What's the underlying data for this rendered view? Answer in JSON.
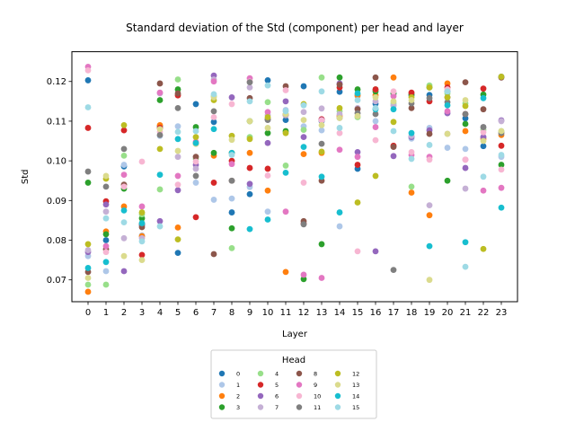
{
  "chart_data": {
    "type": "scatter",
    "title": "Standard deviation of the Std (component) per head and layer",
    "xlabel": "Layer",
    "ylabel": "Std",
    "x": [
      0,
      1,
      2,
      3,
      4,
      5,
      6,
      7,
      8,
      9,
      10,
      11,
      12,
      13,
      14,
      15,
      16,
      17,
      18,
      19,
      20,
      21,
      22,
      23
    ],
    "x_ticks": [
      "0",
      "1",
      "2",
      "3",
      "4",
      "5",
      "6",
      "7",
      "8",
      "9",
      "10",
      "11",
      "12",
      "13",
      "14",
      "15",
      "16",
      "17",
      "18",
      "19",
      "20",
      "21",
      "22",
      "23"
    ],
    "y_ticks": [
      "0.07",
      "0.08",
      "0.09",
      "0.10",
      "0.11",
      "0.12"
    ],
    "xlim": [
      -0.9,
      23.9
    ],
    "ylim": [
      0.0645,
      0.1275
    ],
    "grid": false,
    "legend": {
      "title": "Head",
      "placement": "bottom-center",
      "columns": 4
    },
    "series": [
      {
        "name": "0",
        "color": "#1f77b4",
        "values": [
          0.1203,
          0.08,
          0.0986,
          0.0838,
          0.1087,
          0.0768,
          0.1143,
          0.1098,
          0.087,
          0.0916,
          0.1203,
          0.1103,
          0.1188,
          0.11,
          0.1174,
          0.098,
          0.1144,
          0.117,
          0.1165,
          0.1166,
          0.1175,
          0.1107,
          0.1037,
          0.1212
        ]
      },
      {
        "name": "1",
        "color": "#aec7e8",
        "values": [
          0.076,
          0.0722,
          0.099,
          0.0812,
          0.1063,
          0.1087,
          0.0945,
          0.0902,
          0.0905,
          0.0934,
          0.0872,
          0.1128,
          0.1087,
          0.1077,
          0.0835,
          0.1163,
          0.11,
          0.1139,
          0.1056,
          0.1083,
          0.1033,
          0.103,
          0.106,
          0.101
        ]
      },
      {
        "name": "2",
        "color": "#ff7f0e",
        "values": [
          0.067,
          0.0822,
          0.0885,
          0.081,
          0.109,
          0.0832,
          0.1043,
          0.1013,
          0.102,
          0.102,
          0.0925,
          0.072,
          0.1017,
          0.102,
          0.1113,
          0.1165,
          0.1165,
          0.121,
          0.092,
          0.0863,
          0.1195,
          0.1075,
          0.1055,
          0.1065
        ]
      },
      {
        "name": "3",
        "color": "#2ca02c",
        "values": [
          0.0945,
          0.0815,
          0.093,
          0.0855,
          0.1153,
          0.118,
          0.1085,
          0.102,
          0.083,
          0.11,
          0.107,
          0.1075,
          0.0702,
          0.079,
          0.121,
          0.118,
          0.1175,
          0.117,
          0.1168,
          0.1185,
          0.095,
          0.1093,
          0.1167,
          0.099
        ]
      },
      {
        "name": "4",
        "color": "#98df8a",
        "values": [
          0.0688,
          0.0688,
          0.1013,
          0.0865,
          0.0928,
          0.1205,
          0.1005,
          0.1163,
          0.078,
          0.106,
          0.1148,
          0.0988,
          0.1078,
          0.121,
          0.1125,
          0.111,
          0.118,
          0.1145,
          0.0935,
          0.119,
          0.117,
          0.1145,
          0.1078,
          0.1075
        ]
      },
      {
        "name": "5",
        "color": "#d62728",
        "values": [
          0.1083,
          0.0898,
          0.1077,
          0.0763,
          0.1083,
          0.1165,
          0.0858,
          0.0945,
          0.1,
          0.0982,
          0.098,
          0.1115,
          0.0842,
          0.1105,
          0.1185,
          0.099,
          0.118,
          0.1038,
          0.1172,
          0.115,
          0.1185,
          0.1118,
          0.1182,
          0.1038
        ]
      },
      {
        "name": "6",
        "color": "#9467bd",
        "values": [
          0.077,
          0.089,
          0.0722,
          0.084,
          0.0848,
          0.0926,
          0.099,
          0.1215,
          0.116,
          0.0942,
          0.1045,
          0.115,
          0.106,
          0.1103,
          0.1195,
          0.1022,
          0.0772,
          0.1012,
          0.106,
          0.1077,
          0.112,
          0.0982,
          0.106,
          0.1102
        ]
      },
      {
        "name": "7",
        "color": "#c5b0d5",
        "values": [
          0.0775,
          0.0872,
          0.0805,
          0.0805,
          0.117,
          0.101,
          0.098,
          0.1205,
          0.1063,
          0.1185,
          0.1115,
          0.1115,
          0.1123,
          0.1132,
          0.1118,
          0.1133,
          0.115,
          0.114,
          0.1063,
          0.0888,
          0.1068,
          0.093,
          0.1085,
          0.11
        ]
      },
      {
        "name": "8",
        "color": "#8c564b",
        "values": [
          0.072,
          0.0777,
          0.094,
          0.0833,
          0.1195,
          0.117,
          0.101,
          0.0765,
          0.095,
          0.1158,
          0.1105,
          0.1188,
          0.0848,
          0.095,
          0.1192,
          0.113,
          0.121,
          0.1035,
          0.1133,
          0.1068,
          0.116,
          0.1198,
          0.113,
          0.121
        ]
      },
      {
        "name": "9",
        "color": "#e377c2",
        "values": [
          0.1237,
          0.0785,
          0.0965,
          0.0885,
          0.1172,
          0.0962,
          0.1048,
          0.12,
          0.0992,
          0.1208,
          0.1123,
          0.0872,
          0.0713,
          0.0705,
          0.1028,
          0.101,
          0.1085,
          0.1163,
          0.1015,
          0.101,
          0.1125,
          0.1003,
          0.0925,
          0.0932
        ]
      },
      {
        "name": "10",
        "color": "#f7b6d2",
        "values": [
          0.1228,
          0.077,
          0.0935,
          0.0998,
          0.1073,
          0.094,
          0.0998,
          0.111,
          0.1143,
          0.12,
          0.0963,
          0.1178,
          0.0945,
          0.1102,
          0.107,
          0.0772,
          0.1052,
          0.1175,
          0.1022,
          0.1003,
          0.118,
          0.1003,
          0.1072,
          0.0978
        ]
      },
      {
        "name": "11",
        "color": "#7f7f7f",
        "values": [
          0.0973,
          0.0935,
          0.103,
          0.0842,
          0.1065,
          0.1133,
          0.0962,
          0.1125,
          0.095,
          0.1198,
          0.1103,
          0.1118,
          0.084,
          0.1043,
          0.1108,
          0.112,
          0.1118,
          0.0725,
          0.1145,
          0.1158,
          0.1148,
          0.1118,
          0.1085,
          0.107
        ]
      },
      {
        "name": "12",
        "color": "#bcbd22",
        "values": [
          0.079,
          0.0955,
          0.109,
          0.087,
          0.103,
          0.0802,
          0.106,
          0.1153,
          0.1063,
          0.1055,
          0.111,
          0.107,
          0.1143,
          0.1023,
          0.1133,
          0.0895,
          0.0962,
          0.1098,
          0.116,
          0.1185,
          0.116,
          0.1138,
          0.0778,
          0.1212
        ]
      },
      {
        "name": "13",
        "color": "#dbdb8d",
        "values": [
          0.0705,
          0.0962,
          0.076,
          0.075,
          0.108,
          0.1025,
          0.1043,
          0.116,
          0.1053,
          0.11,
          0.1083,
          0.1118,
          0.1103,
          0.109,
          0.1108,
          0.1113,
          0.116,
          0.115,
          0.1153,
          0.07,
          0.1068,
          0.1153,
          0.105,
          0.1075
        ]
      },
      {
        "name": "14",
        "color": "#17becf",
        "values": [
          0.073,
          0.0745,
          0.0875,
          0.0843,
          0.0965,
          0.1055,
          0.1045,
          0.108,
          0.102,
          0.0828,
          0.0852,
          0.097,
          0.1035,
          0.096,
          0.087,
          0.117,
          0.113,
          0.113,
          0.107,
          0.0785,
          0.114,
          0.0795,
          0.1158,
          0.0882
        ]
      },
      {
        "name": "15",
        "color": "#9edae5",
        "values": [
          0.1135,
          0.0855,
          0.0845,
          0.0797,
          0.0835,
          0.1073,
          0.1075,
          0.1168,
          0.1015,
          0.115,
          0.119,
          0.1125,
          0.114,
          0.1175,
          0.1083,
          0.1153,
          0.1133,
          0.1075,
          0.1005,
          0.104,
          0.1175,
          0.0733,
          0.096,
          0.1015
        ]
      }
    ]
  }
}
